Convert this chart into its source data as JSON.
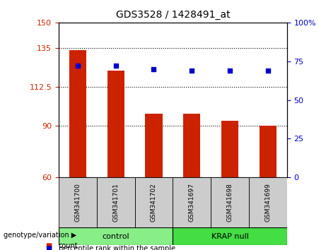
{
  "title": "GDS3528 / 1428491_at",
  "samples": [
    "GSM341700",
    "GSM341701",
    "GSM341702",
    "GSM341697",
    "GSM341698",
    "GSM341699"
  ],
  "bar_values": [
    134,
    122,
    97,
    97,
    93,
    90
  ],
  "scatter_values": [
    72,
    72,
    70,
    69,
    69,
    69
  ],
  "bar_color": "#cc2200",
  "scatter_color": "#0000cc",
  "ylim_left": [
    60,
    150
  ],
  "ylim_right": [
    0,
    100
  ],
  "yticks_left": [
    60,
    90,
    112.5,
    135,
    150
  ],
  "ytick_labels_left": [
    "60",
    "90",
    "112.5",
    "135",
    "150"
  ],
  "yticks_right": [
    0,
    25,
    50,
    75,
    100
  ],
  "ytick_labels_right": [
    "0",
    "25",
    "50",
    "75",
    "100%"
  ],
  "hlines": [
    90,
    112.5,
    135
  ],
  "groups": [
    {
      "label": "control",
      "indices": [
        0,
        1,
        2
      ],
      "color": "#88ee88"
    },
    {
      "label": "KRAP null",
      "indices": [
        3,
        4,
        5
      ],
      "color": "#44dd44"
    }
  ],
  "group_label": "genotype/variation",
  "legend_items": [
    {
      "label": "count",
      "color": "#cc2200"
    },
    {
      "label": "percentile rank within the sample",
      "color": "#0000cc"
    }
  ],
  "bar_width": 0.45,
  "background_color": "#ffffff",
  "sample_cell_color": "#cccccc",
  "tick_color_left": "#cc2200",
  "tick_color_right": "#0000cc"
}
